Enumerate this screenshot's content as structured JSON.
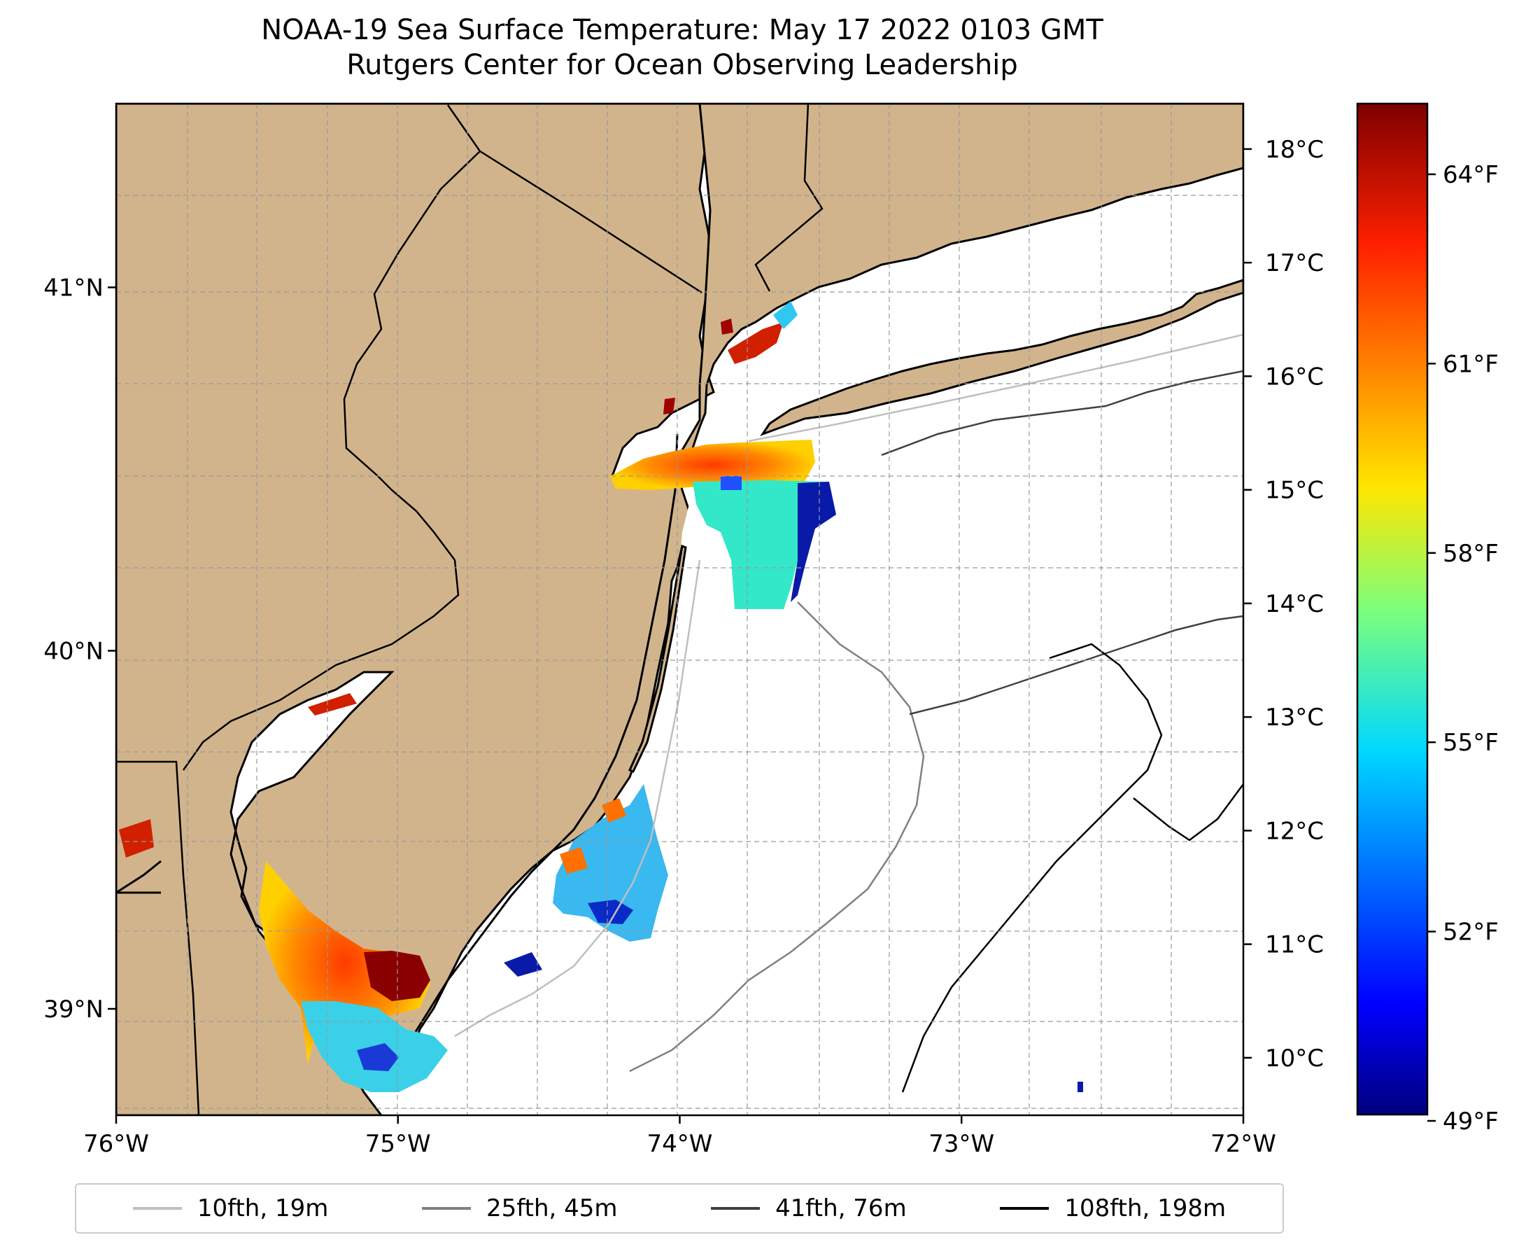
{
  "title": {
    "line1": "NOAA-19 Sea Surface Temperature: May 17 2022 0103 GMT",
    "line2": "Rutgers Center for Ocean Observing Leadership"
  },
  "map": {
    "lon_range": [
      -76,
      -72
    ],
    "lat_range": [
      38.7,
      41.5
    ],
    "lon_ticks": [
      -76,
      -75,
      -74,
      -73,
      -72
    ],
    "lon_tick_labels": [
      "76°W",
      "75°W",
      "74°W",
      "73°W",
      "72°W"
    ],
    "lat_ticks": [
      39,
      40,
      41
    ],
    "lat_tick_labels": [
      "39°N",
      "40°N",
      "41°N"
    ],
    "gridlines": true,
    "land_color": "#d2b48c",
    "ocean_color": "#ffffff"
  },
  "colorbar": {
    "colormap": "jet",
    "celsius_range": [
      9.5,
      18.4
    ],
    "celsius_ticks": [
      10,
      11,
      12,
      13,
      14,
      15,
      16,
      17,
      18
    ],
    "celsius_labels": [
      "10°C",
      "11°C",
      "12°C",
      "13°C",
      "14°C",
      "15°C",
      "16°C",
      "17°C",
      "18°C"
    ],
    "fahrenheit_ticks": [
      49,
      52,
      55,
      58,
      61,
      64
    ],
    "fahrenheit_labels": [
      "49°F",
      "52°F",
      "55°F",
      "58°F",
      "61°F",
      "64°F"
    ]
  },
  "legend": [
    {
      "label": "10fth, 19m",
      "color": "#bfbfbf"
    },
    {
      "label": "25fth, 45m",
      "color": "#808080"
    },
    {
      "label": "41fth, 76m",
      "color": "#404040"
    },
    {
      "label": "108fth, 198m",
      "color": "#000000"
    }
  ]
}
